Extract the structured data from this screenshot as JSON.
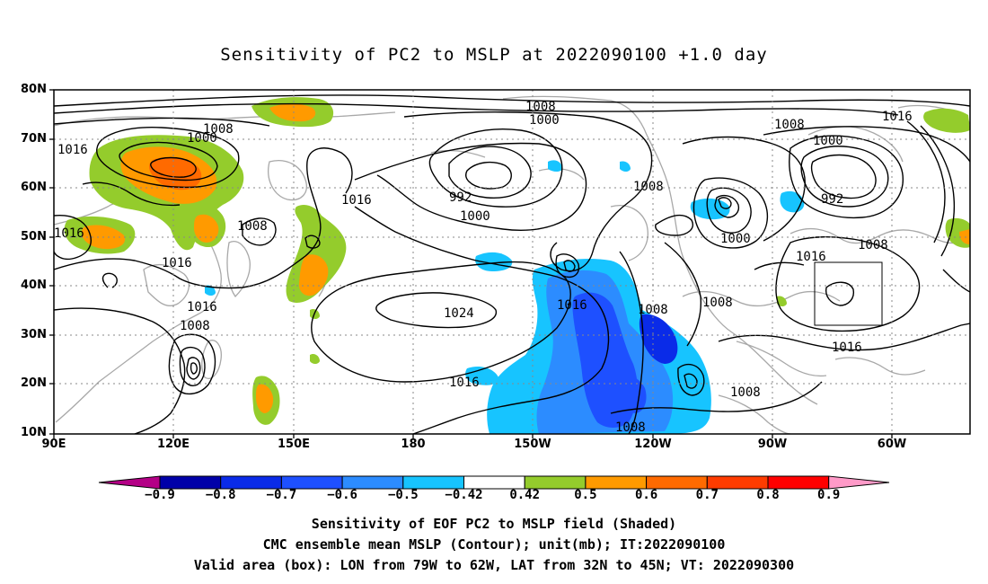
{
  "title": "Sensitivity of PC2 to MSLP at 2022090100 +1.0 day",
  "lat_labels": [
    "80N",
    "70N",
    "60N",
    "50N",
    "40N",
    "30N",
    "20N",
    "10N"
  ],
  "lon_labels": [
    "90E",
    "120E",
    "150E",
    "180",
    "150W",
    "120W",
    "90W",
    "60W"
  ],
  "contour_labels": [
    "1008",
    "1000",
    "1016",
    "1008",
    "1016",
    "1016",
    "1016",
    "1016",
    "1008",
    "1008",
    "1000",
    "992",
    "1000",
    "1008",
    "1008",
    "1000",
    "1016",
    "1024",
    "1016",
    "1016",
    "1008",
    "1008",
    "1008",
    "1008",
    "1000",
    "992",
    "1008",
    "1016",
    "1016"
  ],
  "colorbar": {
    "labels": [
      "-0.9",
      "-0.8",
      "-0.7",
      "-0.6",
      "-0.5",
      "-0.42",
      "0.42",
      "0.5",
      "0.6",
      "0.7",
      "0.8",
      "0.9"
    ],
    "colors": [
      "#b40086",
      "#0000a8",
      "#0a2be8",
      "#1e50ff",
      "#2c8cff",
      "#17c4ff",
      "#ffffff",
      "#94cc2c",
      "#ff9a00",
      "#ff6a00",
      "#ff3c00",
      "#ff0000",
      "#ff9ac8"
    ]
  },
  "caption": {
    "line1": "Sensitivity of EOF PC2 to MSLP field (Shaded)",
    "line2": "CMC ensemble mean MSLP (Contour); unit(mb); IT:2022090100",
    "line3": "Valid area (box): LON from 79W to 62W, LAT from 32N to 45N; VT: 2022090300"
  }
}
